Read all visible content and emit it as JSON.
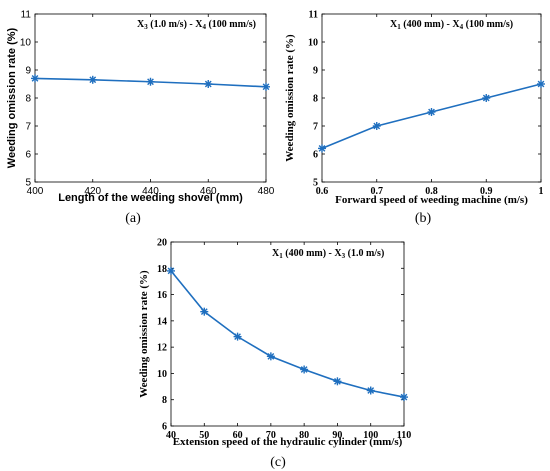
{
  "chart_data": [
    {
      "type": "line",
      "panel_label": "(a)",
      "annotation": [
        {
          "t": "X",
          "sub": false
        },
        {
          "t": "3",
          "sub": true
        },
        {
          "t": " (1.0 m/s) - X",
          "sub": false
        },
        {
          "t": "4",
          "sub": true
        },
        {
          "t": " (100 mm/s)",
          "sub": false
        }
      ],
      "xlabel": "Length of the weeding shovel (mm)",
      "ylabel": "Weeding omission rate (%)",
      "xlim": [
        400,
        480
      ],
      "ylim": [
        5,
        11
      ],
      "xticks": [
        400,
        420,
        440,
        460,
        480
      ],
      "yticks": [
        5,
        6,
        7,
        8,
        9,
        10,
        11
      ],
      "xtick_labels": [
        "400",
        "420",
        "440",
        "460",
        "480"
      ],
      "ytick_labels": [
        "5",
        "6",
        "7",
        "8",
        "9",
        "10",
        "11"
      ],
      "x": [
        400,
        420,
        440,
        460,
        480
      ],
      "y": [
        8.7,
        8.65,
        8.58,
        8.5,
        8.4
      ],
      "color": "#1f6fbf",
      "marker": "asterisk",
      "grid": false
    },
    {
      "type": "line",
      "panel_label": "(b)",
      "annotation": [
        {
          "t": "X",
          "sub": false
        },
        {
          "t": "1",
          "sub": true
        },
        {
          "t": " (400 mm) - X",
          "sub": false
        },
        {
          "t": "4",
          "sub": true
        },
        {
          "t": " (100 mm/s)",
          "sub": false
        }
      ],
      "xlabel": "Forward speed of weeding machine (m/s)",
      "ylabel": "Weeding omission rate (%)",
      "xlim": [
        0.6,
        1.0
      ],
      "ylim": [
        5,
        11
      ],
      "xticks": [
        0.6,
        0.7,
        0.8,
        0.9,
        1.0
      ],
      "yticks": [
        5,
        6,
        7,
        8,
        9,
        10,
        11
      ],
      "xtick_labels": [
        "0.6",
        "0.7",
        "0.8",
        "0.9",
        "1"
      ],
      "ytick_labels": [
        "5",
        "6",
        "7",
        "8",
        "9",
        "10",
        "11"
      ],
      "x": [
        0.6,
        0.7,
        0.8,
        0.9,
        1.0
      ],
      "y": [
        6.2,
        7.0,
        7.5,
        8.0,
        8.5
      ],
      "color": "#1f6fbf",
      "marker": "asterisk",
      "grid": false
    },
    {
      "type": "line",
      "panel_label": "(c)",
      "annotation": [
        {
          "t": "X",
          "sub": false
        },
        {
          "t": "1",
          "sub": true
        },
        {
          "t": " (400 mm) - X",
          "sub": false
        },
        {
          "t": "3",
          "sub": true
        },
        {
          "t": " (1.0 m/s)",
          "sub": false
        }
      ],
      "xlabel": "Extension speed of the hydraulic cylinder (mm/s)",
      "ylabel": "Weeding omission rate (%)",
      "xlim": [
        40,
        110
      ],
      "ylim": [
        6,
        20
      ],
      "xticks": [
        40,
        50,
        60,
        70,
        80,
        90,
        100,
        110
      ],
      "yticks": [
        6,
        8,
        10,
        12,
        14,
        16,
        18,
        20
      ],
      "xtick_labels": [
        "40",
        "50",
        "60",
        "70",
        "80",
        "90",
        "100",
        "110"
      ],
      "ytick_labels": [
        "6",
        "8",
        "10",
        "12",
        "14",
        "16",
        "18",
        "20"
      ],
      "x": [
        40,
        50,
        60,
        70,
        80,
        90,
        100,
        110
      ],
      "y": [
        17.8,
        14.7,
        12.8,
        11.3,
        10.3,
        9.4,
        8.7,
        8.2
      ],
      "color": "#1f6fbf",
      "marker": "asterisk",
      "grid": false
    }
  ]
}
